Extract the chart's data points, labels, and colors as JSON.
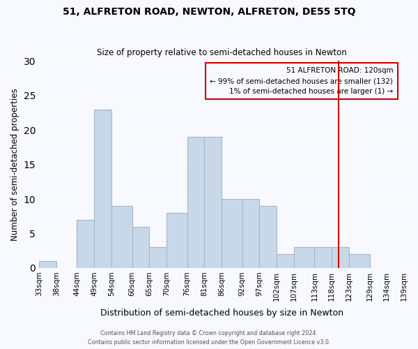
{
  "title": "51, ALFRETON ROAD, NEWTON, ALFRETON, DE55 5TQ",
  "subtitle": "Size of property relative to semi-detached houses in Newton",
  "xlabel": "Distribution of semi-detached houses by size in Newton",
  "ylabel": "Number of semi-detached properties",
  "bins": [
    33,
    38,
    44,
    49,
    54,
    60,
    65,
    70,
    76,
    81,
    86,
    92,
    97,
    102,
    107,
    113,
    118,
    123,
    129,
    134,
    139
  ],
  "counts": [
    1,
    0,
    7,
    23,
    9,
    6,
    3,
    8,
    19,
    19,
    10,
    10,
    9,
    2,
    3,
    3,
    3,
    2,
    0,
    0
  ],
  "bar_color": "#c8d8e8",
  "bar_edgecolor": "#a0b8cc",
  "bar_linewidth": 0.8,
  "vline_x": 120,
  "vline_color": "#cc0000",
  "annotation_title": "51 ALFRETON ROAD: 120sqm",
  "annotation_line1": "← 99% of semi-detached houses are smaller (132)",
  "annotation_line2": "1% of semi-detached houses are larger (1) →",
  "annotation_box_edgecolor": "#cc0000",
  "ylim": [
    0,
    30
  ],
  "yticks": [
    0,
    5,
    10,
    15,
    20,
    25,
    30
  ],
  "tick_labels": [
    "33sqm",
    "38sqm",
    "44sqm",
    "49sqm",
    "54sqm",
    "60sqm",
    "65sqm",
    "70sqm",
    "76sqm",
    "81sqm",
    "86sqm",
    "92sqm",
    "97sqm",
    "102sqm",
    "107sqm",
    "113sqm",
    "118sqm",
    "123sqm",
    "129sqm",
    "134sqm",
    "139sqm"
  ],
  "footer_line1": "Contains HM Land Registry data © Crown copyright and database right 2024.",
  "footer_line2": "Contains public sector information licensed under the Open Government Licence v3.0.",
  "background_color": "#f8f8ff",
  "grid_color": "#ffffff"
}
